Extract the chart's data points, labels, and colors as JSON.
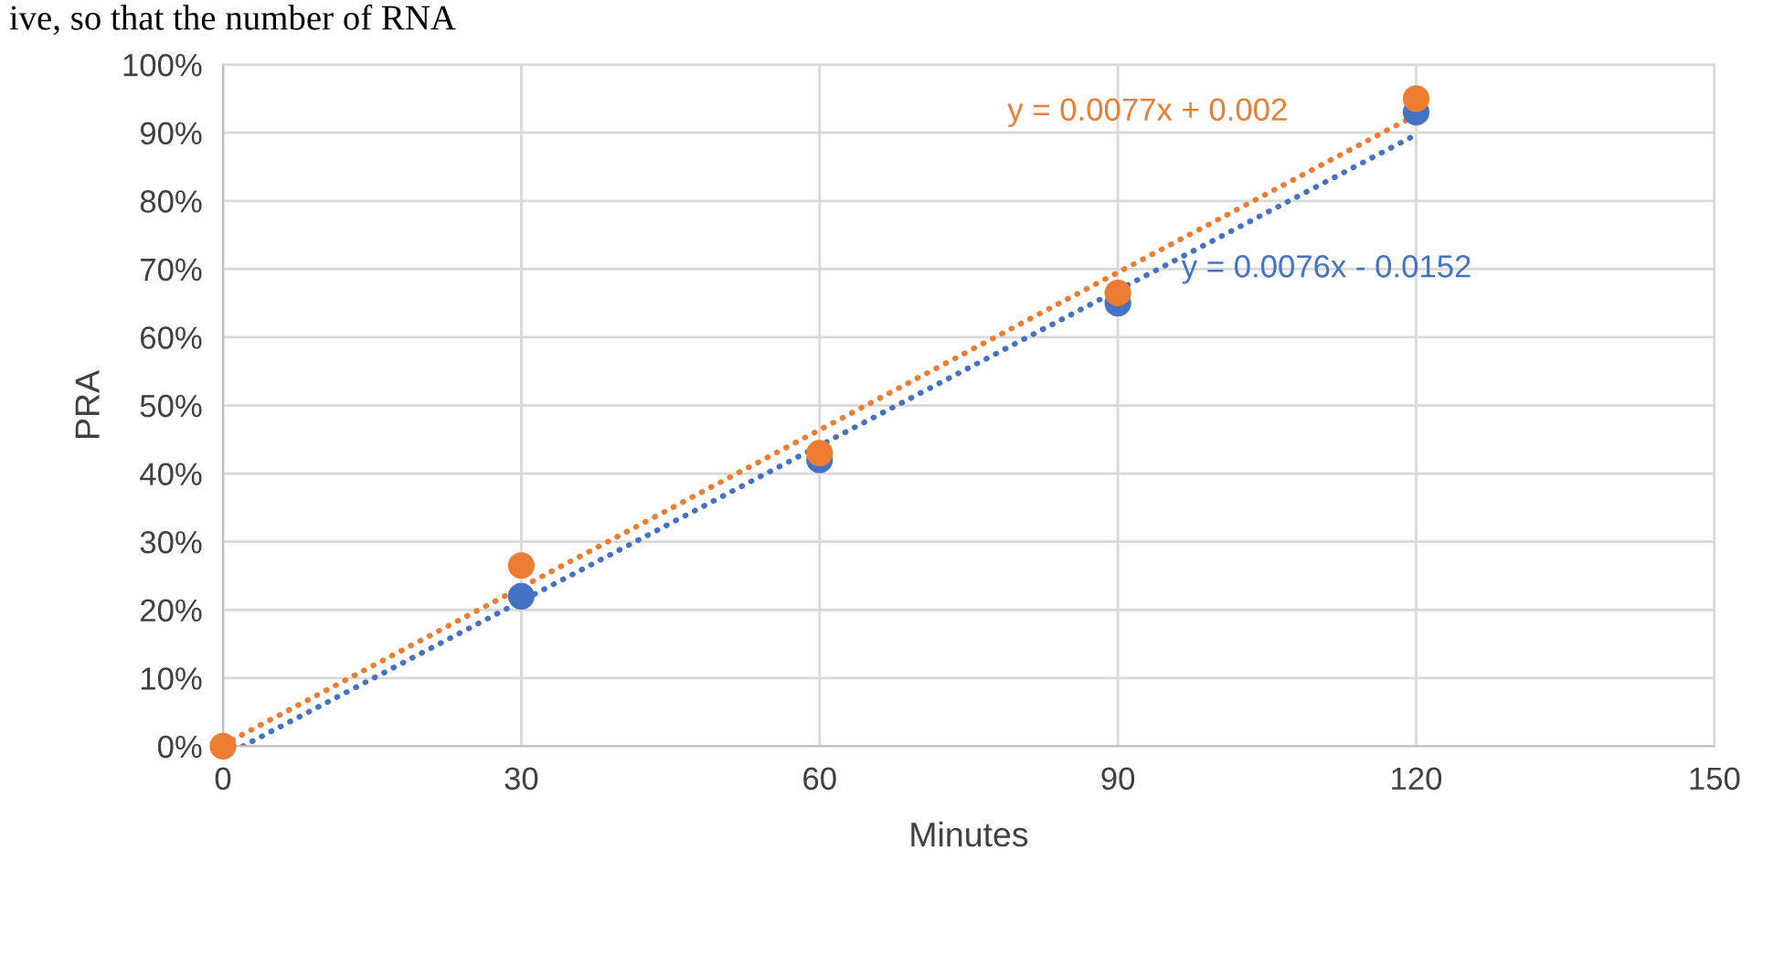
{
  "chart_data": {
    "type": "scatter",
    "xlabel": "Minutes",
    "ylabel": "PRA",
    "series": [
      {
        "color": "#4472c4",
        "x": [
          30,
          60,
          90,
          120
        ],
        "values": [
          0.22,
          0.42,
          0.65,
          0.93
        ]
      },
      {
        "color": "#ed7d31",
        "x": [
          0,
          30,
          60,
          90,
          120
        ],
        "values": [
          0,
          0.265,
          0.43,
          0.665,
          0.95
        ]
      },
      {
        "type": "line",
        "color": "#4472c4",
        "x": [
          2,
          120
        ],
        "values": [
          0,
          0.897
        ],
        "line_style": "dotted",
        "marker": "none"
      },
      {
        "type": "line",
        "color": "#ed7d31",
        "x": [
          0,
          120
        ],
        "values": [
          0.002,
          0.926
        ],
        "line_style": "dotted",
        "marker": "none"
      }
    ],
    "xlim": [
      0,
      150
    ],
    "xticks": [
      0,
      30,
      60,
      90,
      120,
      150
    ],
    "ylim": [
      0,
      1
    ],
    "yticks": [
      {
        "value": 0,
        "label": "0%"
      },
      {
        "value": 0.1,
        "label": "10%"
      },
      {
        "value": 0.2,
        "label": "20%"
      },
      {
        "value": 0.3,
        "label": "30%"
      },
      {
        "value": 0.4,
        "label": "40%"
      },
      {
        "value": 0.5,
        "label": "50%"
      },
      {
        "value": 0.6,
        "label": "60%"
      },
      {
        "value": 0.7,
        "label": "70%"
      },
      {
        "value": 0.8,
        "label": "80%"
      },
      {
        "value": 0.9,
        "label": "90%"
      },
      {
        "value": 1,
        "label": "100%"
      }
    ],
    "grid": true,
    "marker": "circle",
    "annotations": [
      "y = 0.0076x - 0.0152",
      "y = 0.0077x + 0.002",
      "ive, so that the number of RNA"
    ]
  }
}
